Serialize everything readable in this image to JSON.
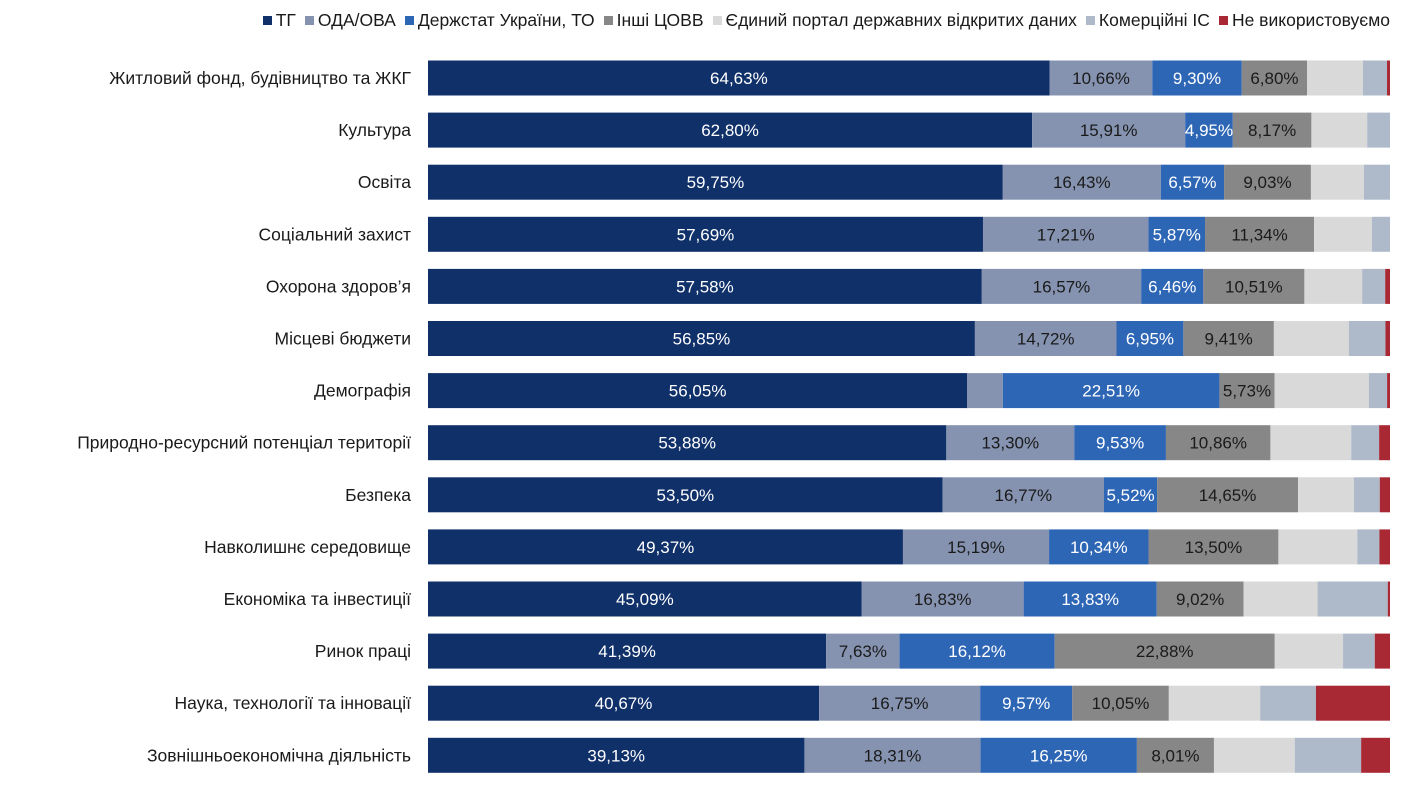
{
  "chart_data": {
    "type": "bar",
    "orientation": "horizontal",
    "stacked": "percent",
    "title": "",
    "xlabel": "",
    "ylabel": "",
    "xlim": [
      0,
      100
    ],
    "grid": false,
    "legend_position": "top-right",
    "categories": [
      "Житловий фонд, будівництво та ЖКГ",
      "Культура",
      "Освіта",
      "Соціальний захист",
      "Охорона здоров’я",
      "Місцеві бюджети",
      "Демографія",
      "Природно-ресурсний потенціал території",
      "Безпека",
      "Навколишнє середовище",
      "Економіка та інвестиції",
      "Ринок праці",
      "Наука, технології та інновації",
      "Зовнішньоекономічна діяльність"
    ],
    "series": [
      {
        "name": "ТГ",
        "color": "#10306A",
        "label_color": "#ffffff",
        "show_labels": true,
        "values": [
          64.63,
          62.8,
          59.75,
          57.69,
          57.58,
          56.85,
          56.05,
          53.88,
          53.5,
          49.37,
          45.09,
          41.39,
          40.67,
          39.13
        ]
      },
      {
        "name": "ОДА/ОВА",
        "color": "#8593B0",
        "label_color": "#1a1a1a",
        "show_labels": true,
        "values": [
          10.66,
          15.91,
          16.43,
          17.21,
          16.57,
          14.72,
          3.7,
          13.3,
          16.77,
          15.19,
          16.83,
          7.63,
          16.75,
          18.31
        ],
        "hidden_labels": [
          6
        ]
      },
      {
        "name": "Держстат України, ТО",
        "color": "#2E66B6",
        "label_color": "#ffffff",
        "show_labels": true,
        "values": [
          9.3,
          4.95,
          6.57,
          5.87,
          6.46,
          6.95,
          22.51,
          9.53,
          5.52,
          10.34,
          13.83,
          16.12,
          9.57,
          16.25
        ]
      },
      {
        "name": "Інші ЦОВВ",
        "color": "#878787",
        "label_color": "#1a1a1a",
        "show_labels": true,
        "values": [
          6.8,
          8.17,
          9.03,
          11.34,
          10.51,
          9.41,
          5.73,
          10.86,
          14.65,
          13.5,
          9.02,
          22.88,
          10.05,
          8.01
        ]
      },
      {
        "name": "Єдиний портал державних відкритих даних",
        "color": "#D9D9D9",
        "label_color": "#1a1a1a",
        "show_labels": false,
        "values": [
          5.8,
          5.8,
          5.5,
          6.0,
          6.0,
          7.8,
          9.8,
          8.4,
          5.8,
          8.2,
          7.7,
          7.1,
          9.5,
          8.4
        ]
      },
      {
        "name": "Комерційні ІС",
        "color": "#AEB9C9",
        "label_color": "#1a1a1a",
        "show_labels": false,
        "values": [
          2.5,
          2.37,
          2.72,
          1.89,
          2.4,
          3.8,
          1.9,
          2.9,
          2.7,
          2.3,
          7.3,
          3.3,
          5.8,
          6.9
        ]
      },
      {
        "name": "Не використовуємо",
        "color": "#A82834",
        "label_color": "#ffffff",
        "show_labels": false,
        "values": [
          0.31,
          0.0,
          0.0,
          0.0,
          0.5,
          0.47,
          0.3,
          1.13,
          1.06,
          1.1,
          0.23,
          1.58,
          7.7,
          3.0
        ]
      }
    ],
    "data_labels": [
      [
        "64,63%",
        "10,66%",
        "9,30%",
        "6,80%"
      ],
      [
        "62,80%",
        "15,91%",
        "4,95%",
        "8,17%"
      ],
      [
        "59,75%",
        "16,43%",
        "6,57%",
        "9,03%"
      ],
      [
        "57,69%",
        "17,21%",
        "5,87%",
        "11,34%"
      ],
      [
        "57,58%",
        "16,57%",
        "6,46%",
        "10,51%"
      ],
      [
        "56,85%",
        "14,72%",
        "6,95%",
        "9,41%"
      ],
      [
        "56,05%",
        "",
        "22,51%",
        "5,73%"
      ],
      [
        "53,88%",
        "13,30%",
        "9,53%",
        "10,86%"
      ],
      [
        "53,50%",
        "16,77%",
        "5,52%",
        "14,65%"
      ],
      [
        "49,37%",
        "15,19%",
        "10,34%",
        "13,50%"
      ],
      [
        "45,09%",
        "16,83%",
        "13,83%",
        "9,02%"
      ],
      [
        "41,39%",
        "7,63%",
        "16,12%",
        "22,88%"
      ],
      [
        "40,67%",
        "16,75%",
        "9,57%",
        "10,05%"
      ],
      [
        "39,13%",
        "18,31%",
        "16,25%",
        "8,01%"
      ]
    ]
  }
}
